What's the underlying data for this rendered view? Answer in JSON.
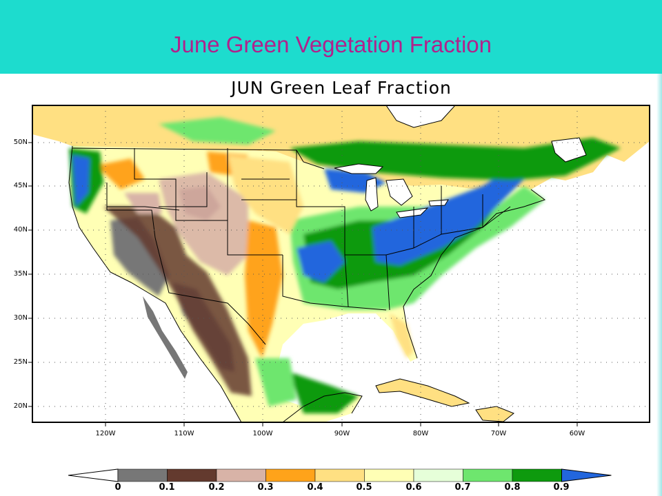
{
  "banner": {
    "title": "June Green Vegetation Fraction",
    "color": "#1ddcce",
    "title_color": "#b0228c"
  },
  "map": {
    "title": "JUN Green Leaf Fraction",
    "region": "Contiguous United States, southern Canada, Mexico and the Caribbean",
    "lat_range": [
      18,
      54
    ],
    "lon_range": [
      -129,
      -51
    ],
    "lat_labels": [
      "50N",
      "45N",
      "40N",
      "35N",
      "30N",
      "25N",
      "20N"
    ],
    "lon_labels": [
      "120W",
      "110W",
      "100W",
      "90W",
      "80W",
      "70W",
      "60W"
    ]
  },
  "legend": {
    "labels": [
      "0",
      "0.1",
      "0.2",
      "0.3",
      "0.4",
      "0.5",
      "0.6",
      "0.7",
      "0.8",
      "0.9"
    ],
    "colors": [
      "#ffffff",
      "#777777",
      "#633a2e",
      "#d8b3a7",
      "#ffa31a",
      "#ffe082",
      "#ffffb5",
      "#e6ffd9",
      "#6ee66e",
      "#0e9a0e",
      "#2266dd"
    ]
  }
}
